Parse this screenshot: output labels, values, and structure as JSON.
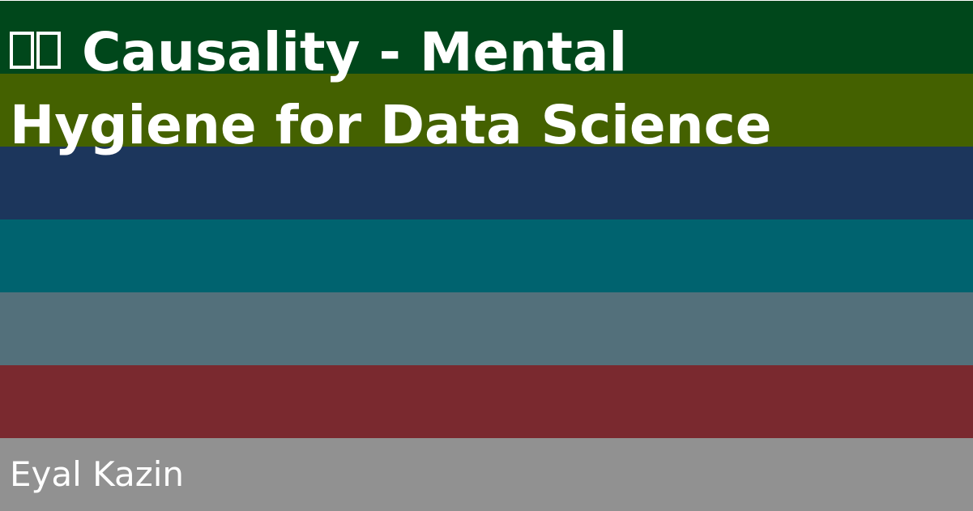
{
  "cover": {
    "title_line1": "Causality - Mental",
    "title_line2": "Hygiene for Data Science",
    "author": "Eyal Kazin",
    "title_icon": "unsupported-glyph-boxes"
  },
  "stripes": [
    {
      "name": "stripe-dark-green",
      "color": "#00471b"
    },
    {
      "name": "stripe-olive-green",
      "color": "#446100"
    },
    {
      "name": "stripe-navy",
      "color": "#1c365c"
    },
    {
      "name": "stripe-teal",
      "color": "#00636f"
    },
    {
      "name": "stripe-slate",
      "color": "#53707b"
    },
    {
      "name": "stripe-maroon",
      "color": "#7a292f"
    },
    {
      "name": "stripe-gray",
      "color": "#919191"
    }
  ]
}
